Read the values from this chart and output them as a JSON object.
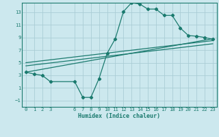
{
  "bg_color": "#cce8ee",
  "grid_color": "#aacdd5",
  "line_color": "#1a7a6e",
  "xlim": [
    -0.5,
    23.5
  ],
  "ylim": [
    -2.0,
    14.5
  ],
  "xticks": [
    0,
    1,
    2,
    3,
    6,
    7,
    8,
    9,
    10,
    11,
    12,
    13,
    14,
    15,
    16,
    17,
    18,
    19,
    20,
    21,
    22,
    23
  ],
  "yticks": [
    -1,
    1,
    3,
    5,
    7,
    9,
    11,
    13
  ],
  "xlabel": "Humidex (Indice chaleur)",
  "curve_x": [
    0,
    1,
    2,
    3,
    6,
    7,
    8,
    9,
    10,
    11,
    12,
    13,
    14,
    15,
    16,
    17,
    18,
    19,
    20,
    21,
    22,
    23
  ],
  "curve_y": [
    3.5,
    3.2,
    3.0,
    2.0,
    2.0,
    -0.5,
    -0.5,
    2.5,
    6.5,
    8.8,
    13.1,
    14.5,
    14.3,
    13.5,
    13.5,
    12.5,
    12.5,
    10.5,
    9.3,
    9.2,
    9.0,
    8.7
  ],
  "line1_x": [
    0,
    23
  ],
  "line1_y": [
    3.5,
    8.8
  ],
  "line2_x": [
    0,
    23
  ],
  "line2_y": [
    4.5,
    8.0
  ],
  "line3_x": [
    0,
    23
  ],
  "line3_y": [
    5.0,
    8.5
  ]
}
